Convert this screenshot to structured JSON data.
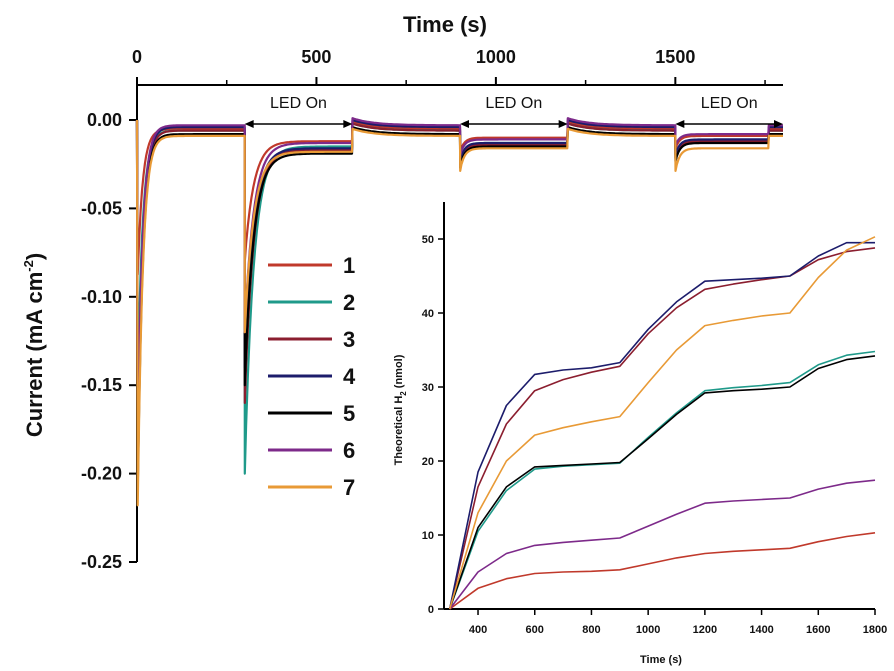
{
  "chart_data": [
    {
      "type": "line",
      "xlabel": "Time  (s)",
      "ylabel": "Current (mA cm",
      "ylabel_sup": "-2",
      "ylabel_close": ")",
      "x_ticks": [
        "0",
        "500",
        "1000",
        "1500"
      ],
      "y_ticks": [
        "0.00",
        "-0.05",
        "-0.10",
        "-0.15",
        "-0.20",
        "-0.25"
      ],
      "xlim": [
        0,
        1800
      ],
      "ylim": [
        -0.25,
        0.02
      ],
      "annotations": [
        {
          "text": "LED On",
          "x_start": 300,
          "x_end": 600
        },
        {
          "text": "LED On",
          "x_start": 900,
          "x_end": 1200
        },
        {
          "text": "LED On",
          "x_start": 1500,
          "x_end": 1800
        }
      ],
      "legend": {
        "placement": "middle-left"
      },
      "series": [
        {
          "name": "1",
          "color": "#c0392b",
          "initial_dip": -0.1,
          "step_dip": -0.08,
          "on_levels": [
            -0.012,
            -0.01,
            -0.009
          ],
          "dark_level": -0.005
        },
        {
          "name": "2",
          "color": "#1f9a8a",
          "initial_dip": -0.17,
          "step_dip": -0.2,
          "on_levels": [
            -0.015,
            -0.013,
            -0.012
          ],
          "dark_level": -0.006
        },
        {
          "name": "3",
          "color": "#8b1e2f",
          "initial_dip": -0.23,
          "step_dip": -0.16,
          "on_levels": [
            -0.017,
            -0.014,
            -0.012
          ],
          "dark_level": -0.006
        },
        {
          "name": "4",
          "color": "#1c1c6b",
          "initial_dip": -0.22,
          "step_dip": -0.14,
          "on_levels": [
            -0.016,
            -0.013,
            -0.011
          ],
          "dark_level": -0.004
        },
        {
          "name": "5",
          "color": "#000000",
          "initial_dip": -0.24,
          "step_dip": -0.15,
          "on_levels": [
            -0.019,
            -0.015,
            -0.013
          ],
          "dark_level": -0.008
        },
        {
          "name": "6",
          "color": "#7d2a8a",
          "initial_dip": -0.2,
          "step_dip": -0.12,
          "on_levels": [
            -0.013,
            -0.011,
            -0.008
          ],
          "dark_level": -0.003
        },
        {
          "name": "7",
          "color": "#e89a36",
          "initial_dip": -0.25,
          "step_dip": -0.12,
          "on_levels": [
            -0.018,
            -0.016,
            -0.016
          ],
          "dark_level": -0.009
        }
      ]
    },
    {
      "type": "line",
      "xlabel": "Time (s)",
      "ylabel": "Theoretical H",
      "ylabel_sub": "2",
      "ylabel_close": " (nmol)",
      "x_ticks": [
        400,
        600,
        800,
        1000,
        1200,
        1400,
        1600,
        1800
      ],
      "y_ticks": [
        0,
        10,
        20,
        30,
        40,
        50
      ],
      "xlim": [
        280,
        1800
      ],
      "ylim": [
        0,
        55
      ],
      "series": [
        {
          "name": "1",
          "color": "#c0392b",
          "points": [
            [
              300,
              0
            ],
            [
              400,
              2.8
            ],
            [
              500,
              4.1
            ],
            [
              600,
              4.8
            ],
            [
              700,
              5.0
            ],
            [
              800,
              5.1
            ],
            [
              900,
              5.3
            ],
            [
              1000,
              6.1
            ],
            [
              1100,
              6.9
            ],
            [
              1200,
              7.5
            ],
            [
              1300,
              7.8
            ],
            [
              1400,
              8.0
            ],
            [
              1500,
              8.2
            ],
            [
              1600,
              9.1
            ],
            [
              1700,
              9.8
            ],
            [
              1800,
              10.3
            ]
          ]
        },
        {
          "name": "2",
          "color": "#1f9a8a",
          "points": [
            [
              300,
              0
            ],
            [
              400,
              10.5
            ],
            [
              500,
              16.0
            ],
            [
              600,
              18.9
            ],
            [
              700,
              19.3
            ],
            [
              800,
              19.5
            ],
            [
              900,
              19.7
            ],
            [
              1000,
              23.2
            ],
            [
              1100,
              26.5
            ],
            [
              1200,
              29.5
            ],
            [
              1300,
              29.9
            ],
            [
              1400,
              30.2
            ],
            [
              1500,
              30.6
            ],
            [
              1600,
              33.0
            ],
            [
              1700,
              34.3
            ],
            [
              1800,
              34.8
            ]
          ]
        },
        {
          "name": "3",
          "color": "#8b1e2f",
          "points": [
            [
              300,
              0
            ],
            [
              400,
              16.5
            ],
            [
              500,
              25.0
            ],
            [
              600,
              29.5
            ],
            [
              700,
              31.0
            ],
            [
              800,
              32.0
            ],
            [
              900,
              32.8
            ],
            [
              1000,
              37.2
            ],
            [
              1100,
              40.7
            ],
            [
              1200,
              43.2
            ],
            [
              1300,
              43.9
            ],
            [
              1400,
              44.5
            ],
            [
              1500,
              45.0
            ],
            [
              1600,
              47.2
            ],
            [
              1700,
              48.3
            ],
            [
              1800,
              48.8
            ]
          ]
        },
        {
          "name": "4",
          "color": "#1c1c6b",
          "points": [
            [
              300,
              0
            ],
            [
              400,
              18.5
            ],
            [
              500,
              27.5
            ],
            [
              600,
              31.7
            ],
            [
              700,
              32.3
            ],
            [
              800,
              32.6
            ],
            [
              900,
              33.3
            ],
            [
              1000,
              37.8
            ],
            [
              1100,
              41.5
            ],
            [
              1200,
              44.3
            ],
            [
              1300,
              44.5
            ],
            [
              1400,
              44.7
            ],
            [
              1500,
              45.0
            ],
            [
              1600,
              47.7
            ],
            [
              1700,
              49.5
            ],
            [
              1800,
              49.5
            ]
          ]
        },
        {
          "name": "5",
          "color": "#000000",
          "points": [
            [
              300,
              0
            ],
            [
              400,
              11.0
            ],
            [
              500,
              16.5
            ],
            [
              600,
              19.2
            ],
            [
              700,
              19.4
            ],
            [
              800,
              19.6
            ],
            [
              900,
              19.8
            ],
            [
              1000,
              23.0
            ],
            [
              1100,
              26.3
            ],
            [
              1200,
              29.2
            ],
            [
              1300,
              29.5
            ],
            [
              1400,
              29.7
            ],
            [
              1500,
              30.0
            ],
            [
              1600,
              32.5
            ],
            [
              1700,
              33.7
            ],
            [
              1800,
              34.2
            ]
          ]
        },
        {
          "name": "6",
          "color": "#7d2a8a",
          "points": [
            [
              300,
              0
            ],
            [
              400,
              5.0
            ],
            [
              500,
              7.5
            ],
            [
              600,
              8.6
            ],
            [
              700,
              9.0
            ],
            [
              800,
              9.3
            ],
            [
              900,
              9.6
            ],
            [
              1000,
              11.2
            ],
            [
              1100,
              12.8
            ],
            [
              1200,
              14.3
            ],
            [
              1300,
              14.6
            ],
            [
              1400,
              14.8
            ],
            [
              1500,
              15.0
            ],
            [
              1600,
              16.2
            ],
            [
              1700,
              17.0
            ],
            [
              1800,
              17.4
            ]
          ]
        },
        {
          "name": "7",
          "color": "#e89a36",
          "points": [
            [
              300,
              0
            ],
            [
              400,
              13.0
            ],
            [
              500,
              20.0
            ],
            [
              600,
              23.5
            ],
            [
              700,
              24.5
            ],
            [
              800,
              25.3
            ],
            [
              900,
              26.0
            ],
            [
              1000,
              30.6
            ],
            [
              1100,
              35.0
            ],
            [
              1200,
              38.3
            ],
            [
              1300,
              39.0
            ],
            [
              1400,
              39.6
            ],
            [
              1500,
              40.0
            ],
            [
              1600,
              44.8
            ],
            [
              1700,
              48.5
            ],
            [
              1800,
              50.3
            ]
          ]
        }
      ]
    }
  ]
}
